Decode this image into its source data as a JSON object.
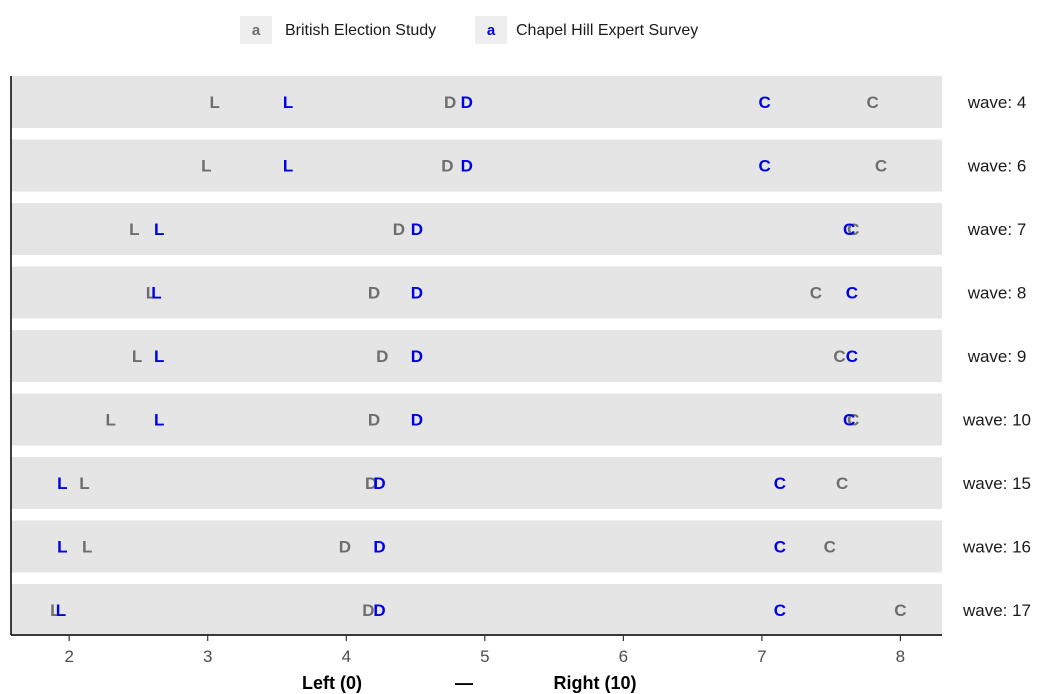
{
  "chart_data": {
    "type": "scatter",
    "x_range": [
      1.58,
      8.3
    ],
    "x_ticks": [
      "2",
      "3",
      "4",
      "5",
      "6",
      "7",
      "8"
    ],
    "x_tick_values": [
      2,
      3,
      4,
      5,
      6,
      7,
      8
    ],
    "xlabel": {
      "left": "Left (0)",
      "middle": "—",
      "right": "Right (10)"
    },
    "legend": {
      "position": "top",
      "entries": [
        {
          "key": "a",
          "name": "British Election Study",
          "color": "#6e6e6e"
        },
        {
          "key": "a",
          "name": "Chapel Hill Expert Survey",
          "color": "#0000e6"
        }
      ]
    },
    "colors": {
      "panel_background": "#e5e5e5",
      "bes": "#6e6e6e",
      "ches": "#0000e6"
    },
    "panels": [
      {
        "label": "wave: 4",
        "bes": {
          "L": 3.05,
          "D": 4.75,
          "C": 7.8
        },
        "ches": {
          "L": 3.58,
          "D": 4.87,
          "C": 7.02
        }
      },
      {
        "label": "wave: 6",
        "bes": {
          "L": 2.99,
          "D": 4.73,
          "C": 7.86
        },
        "ches": {
          "L": 3.58,
          "D": 4.87,
          "C": 7.02
        }
      },
      {
        "label": "wave: 7",
        "bes": {
          "L": 2.47,
          "D": 4.38,
          "C": 7.66
        },
        "ches": {
          "L": 2.65,
          "D": 4.51,
          "C": 7.63
        }
      },
      {
        "label": "wave: 8",
        "bes": {
          "L": 2.59,
          "D": 4.2,
          "C": 7.39
        },
        "ches": {
          "L": 2.63,
          "D": 4.51,
          "C": 7.65
        }
      },
      {
        "label": "wave: 9",
        "bes": {
          "L": 2.49,
          "D": 4.26,
          "C": 7.56
        },
        "ches": {
          "L": 2.65,
          "D": 4.51,
          "C": 7.65
        }
      },
      {
        "label": "wave: 10",
        "bes": {
          "L": 2.3,
          "D": 4.2,
          "C": 7.66
        },
        "ches": {
          "L": 2.65,
          "D": 4.51,
          "C": 7.63
        }
      },
      {
        "label": "wave: 15",
        "bes": {
          "L": 2.11,
          "D": 4.18,
          "C": 7.58
        },
        "ches": {
          "L": 1.95,
          "D": 4.24,
          "C": 7.13
        }
      },
      {
        "label": "wave: 16",
        "bes": {
          "L": 2.13,
          "D": 3.99,
          "C": 7.49
        },
        "ches": {
          "L": 1.95,
          "D": 4.24,
          "C": 7.13
        }
      },
      {
        "label": "wave: 17",
        "bes": {
          "L": 1.9,
          "D": 4.16,
          "C": 8.0
        },
        "ches": {
          "L": 1.94,
          "D": 4.24,
          "C": 7.13
        }
      }
    ]
  }
}
